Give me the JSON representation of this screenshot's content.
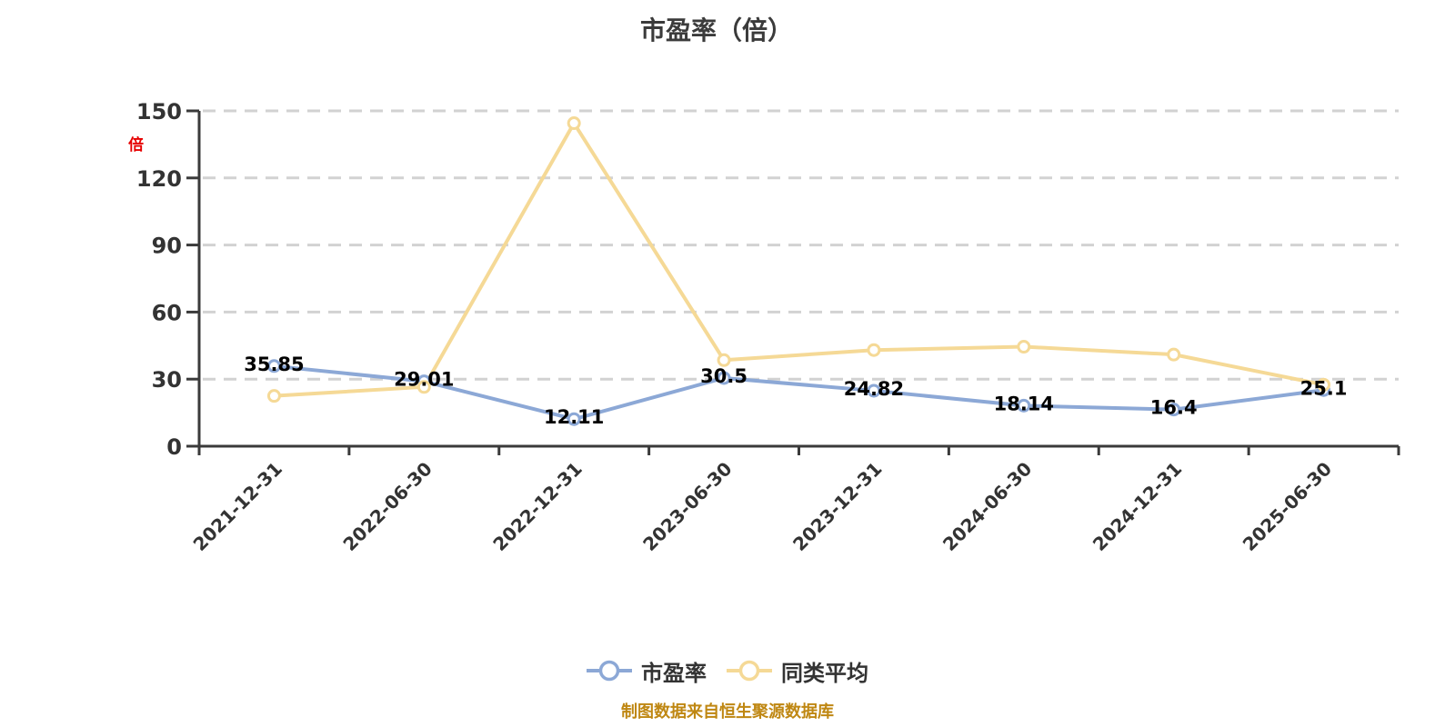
{
  "page": {
    "background": "#ffffff"
  },
  "chart_data": {
    "type": "line",
    "title": "市盈率（倍）",
    "y_axis_unit": "倍",
    "caption": "制图数据来自恒生聚源数据库",
    "caption_color": "#bf8712",
    "unit_label_color": "#e60000",
    "axis_color": "#3a3a3a",
    "tick_label_color": "#333333",
    "point_label_color": "#000000",
    "grid": {
      "show": true,
      "dashed": true,
      "color": "#d2d2d2"
    },
    "legend_position": "bottom",
    "categories": [
      "2021-12-31",
      "2022-06-30",
      "2022-12-31",
      "2023-06-30",
      "2023-12-31",
      "2024-06-30",
      "2024-12-31",
      "2025-06-30"
    ],
    "x_label_rotation": 45,
    "ylim": [
      0,
      150
    ],
    "yticks": [
      0,
      30,
      60,
      90,
      120,
      150
    ],
    "series": [
      {
        "key": "pe",
        "name": "市盈率",
        "color": "#8ca8d6",
        "marker": "circle-white-fill",
        "values": [
          35.85,
          29.01,
          12.11,
          30.5,
          24.82,
          18.14,
          16.4,
          25.1
        ],
        "point_labels": [
          "35.85",
          "29.01",
          "12.11",
          "30.5",
          "24.82",
          "18.14",
          "16.4",
          "25.1"
        ],
        "show_point_labels": true
      },
      {
        "key": "peer-average",
        "name": "同类平均",
        "color": "#f5d996",
        "marker": "circle-white-fill",
        "values": [
          22.5,
          26.5,
          144.5,
          38.5,
          43.0,
          44.5,
          41.0,
          27.5
        ],
        "point_labels": [],
        "show_point_labels": false
      }
    ]
  }
}
